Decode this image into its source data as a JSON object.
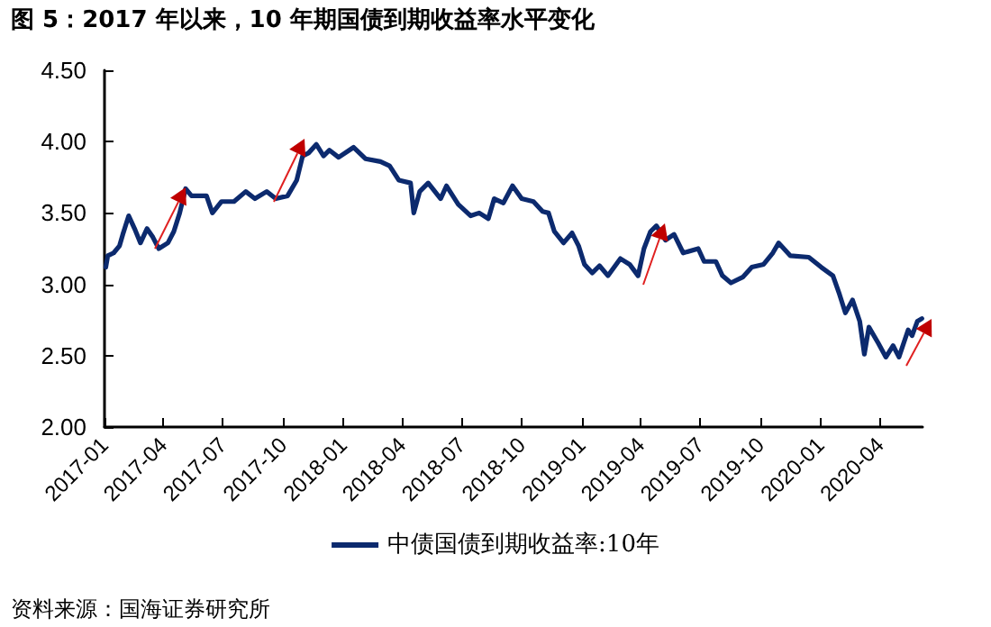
{
  "chart_data": {
    "type": "line",
    "title": "图 5：2017 年以来，10 年期国债到期收益率水平变化",
    "annotations": [
      "资料来源：国海证券研究所"
    ],
    "x": [
      "2017-01-03",
      "2017-01-06",
      "2017-01-15",
      "2017-01-24",
      "2017-01-29",
      "2017-02-07",
      "2017-02-16",
      "2017-02-25",
      "2017-03-07",
      "2017-03-16",
      "2017-03-25",
      "2017-04-08",
      "2017-04-17",
      "2017-04-26",
      "2017-05-05",
      "2017-05-14",
      "2017-06-06",
      "2017-06-15",
      "2017-06-29",
      "2017-07-18",
      "2017-08-05",
      "2017-08-19",
      "2017-09-06",
      "2017-09-20",
      "2017-10-08",
      "2017-10-22",
      "2017-10-31",
      "2017-11-09",
      "2017-11-21",
      "2017-12-02",
      "2017-12-11",
      "2017-12-25",
      "2018-01-17",
      "2018-02-04",
      "2018-02-27",
      "2018-03-13",
      "2018-03-27",
      "2018-04-14",
      "2018-04-19",
      "2018-04-28",
      "2018-05-11",
      "2018-05-30",
      "2018-06-08",
      "2018-06-26",
      "2018-07-15",
      "2018-07-28",
      "2018-08-11",
      "2018-08-20",
      "2018-09-03",
      "2018-09-17",
      "2018-10-01",
      "2018-10-19",
      "2018-11-02",
      "2018-11-11",
      "2018-11-20",
      "2018-12-04",
      "2018-12-17",
      "2018-12-27",
      "2019-01-05",
      "2019-01-17",
      "2019-01-28",
      "2019-02-10",
      "2019-03-01",
      "2019-03-15",
      "2019-03-28",
      "2019-04-06",
      "2019-04-16",
      "2019-04-25",
      "2019-05-09",
      "2019-05-22",
      "2019-06-05",
      "2019-06-28",
      "2019-07-07",
      "2019-07-25",
      "2019-08-04",
      "2019-08-17",
      "2019-09-04",
      "2019-09-18",
      "2019-10-06",
      "2019-10-20",
      "2019-10-29",
      "2019-11-16",
      "2019-12-14",
      "2020-01-02",
      "2020-01-20",
      "2020-01-30",
      "2020-02-08",
      "2020-02-19",
      "2020-03-01",
      "2020-03-08",
      "2020-03-15",
      "2020-03-29",
      "2020-04-10",
      "2020-04-21",
      "2020-04-30",
      "2020-05-14",
      "2020-05-20",
      "2020-05-28",
      "2020-06-04"
    ],
    "series": [
      {
        "name": "中债国债到期收益率:10年",
        "color": "#0c2a6e",
        "values": [
          3.12,
          3.2,
          3.22,
          3.27,
          3.35,
          3.48,
          3.39,
          3.29,
          3.39,
          3.33,
          3.25,
          3.29,
          3.37,
          3.5,
          3.67,
          3.62,
          3.62,
          3.5,
          3.58,
          3.58,
          3.65,
          3.6,
          3.65,
          3.6,
          3.62,
          3.73,
          3.9,
          3.92,
          3.98,
          3.9,
          3.94,
          3.89,
          3.96,
          3.88,
          3.86,
          3.83,
          3.73,
          3.71,
          3.5,
          3.65,
          3.71,
          3.6,
          3.69,
          3.56,
          3.48,
          3.5,
          3.46,
          3.6,
          3.57,
          3.69,
          3.6,
          3.58,
          3.51,
          3.5,
          3.37,
          3.29,
          3.36,
          3.27,
          3.14,
          3.08,
          3.13,
          3.06,
          3.18,
          3.14,
          3.06,
          3.25,
          3.37,
          3.41,
          3.31,
          3.35,
          3.22,
          3.25,
          3.16,
          3.16,
          3.06,
          3.01,
          3.05,
          3.12,
          3.14,
          3.22,
          3.29,
          3.2,
          3.19,
          3.12,
          3.06,
          2.93,
          2.8,
          2.89,
          2.74,
          2.51,
          2.7,
          2.59,
          2.49,
          2.57,
          2.49,
          2.68,
          2.64,
          2.74,
          2.76
        ]
      }
    ],
    "xlim": [
      "2017-01-01",
      "2020-06-05"
    ],
    "xticks": [
      "2017-01",
      "2017-04",
      "2017-07",
      "2017-10",
      "2018-01",
      "2018-04",
      "2018-07",
      "2018-10",
      "2019-01",
      "2019-04",
      "2019-07",
      "2019-10",
      "2020-01",
      "2020-04"
    ],
    "ylim": [
      2.0,
      4.5
    ],
    "yticks": [
      {
        "value": 2.0,
        "label": "2.00"
      },
      {
        "value": 2.5,
        "label": "2.50"
      },
      {
        "value": 3.0,
        "label": "3.00"
      },
      {
        "value": 3.5,
        "label": "3.50"
      },
      {
        "value": 4.0,
        "label": "4.00"
      },
      {
        "value": 4.5,
        "label": "4.50"
      }
    ],
    "grid": false,
    "legend": "bottom",
    "marker": "none",
    "line_style": "solid"
  }
}
